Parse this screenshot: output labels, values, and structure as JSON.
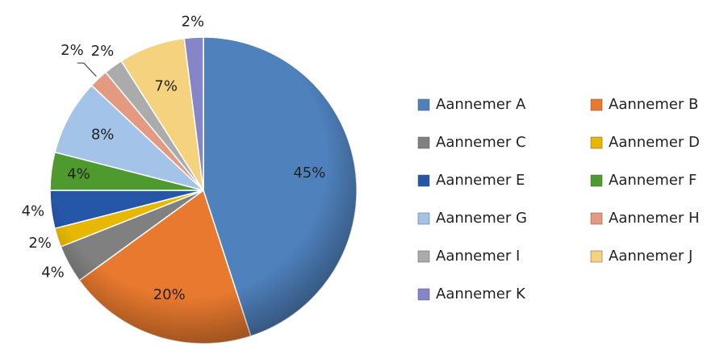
{
  "chart_data": {
    "type": "pie",
    "categories": [
      "Aannemer A",
      "Aannemer B",
      "Aannemer C",
      "Aannemer D",
      "Aannemer E",
      "Aannemer F",
      "Aannemer G",
      "Aannemer H",
      "Aannemer I",
      "Aannemer J",
      "Aannemer K"
    ],
    "values": [
      45,
      20,
      4,
      2,
      4,
      4,
      8,
      2,
      2,
      7,
      2
    ],
    "value_labels": [
      "45%",
      "20%",
      "4%",
      "2%",
      "4%",
      "4%",
      "8%",
      "2%",
      "2%",
      "7%",
      "2%"
    ],
    "colors": [
      "#4f81bd",
      "#e8792e",
      "#808080",
      "#e8b800",
      "#2556a8",
      "#4e9a2e",
      "#a3c4e8",
      "#e49a80",
      "#ababab",
      "#f4d27e",
      "#8585c8"
    ],
    "legend": "right"
  }
}
